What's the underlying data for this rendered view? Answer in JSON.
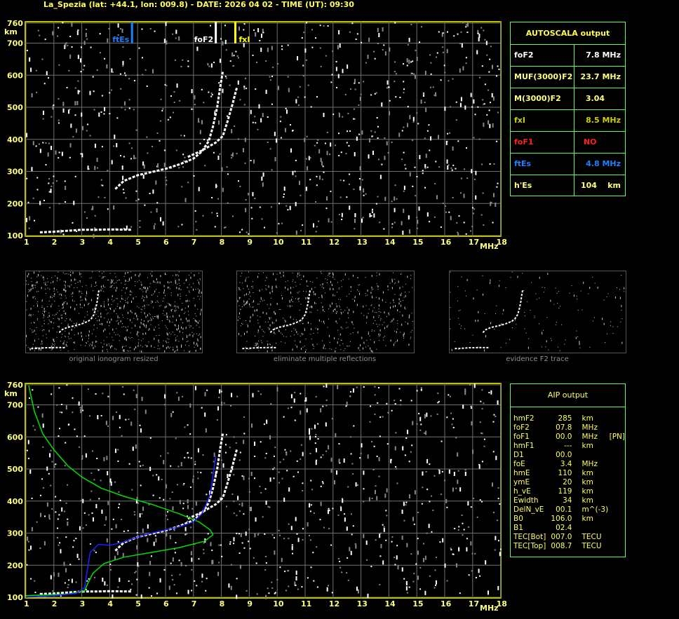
{
  "header": {
    "title": "La_Spezia (lat: +44.1, lon: 009.8) - DATE: 2026 04 02 - TIME (UT): 09:30"
  },
  "colors": {
    "axis": "#ffff00",
    "grid": "#808080",
    "es": "#1e7fff",
    "fxi": "#ffff00",
    "foF1": "#ff2020",
    "profile": "#00e000",
    "model": "#2020ff",
    "panel_border": "#60ff60"
  },
  "autoscala": {
    "title": "AUTOSCALA output",
    "rows": [
      {
        "label": "foF2",
        "value": "7.8 MHz",
        "color": "#ffffff"
      },
      {
        "label": "MUF(3000)F2",
        "value": "23.7 MHz",
        "color": "#ffff80"
      },
      {
        "label": "M(3000)F2",
        "value": "3.04      ",
        "color": "#ffff80"
      },
      {
        "label": "fxI",
        "value": "8.5 MHz",
        "color": "#d0d000"
      },
      {
        "label": "foF1",
        "value": "NO         ",
        "color": "#ff2020"
      },
      {
        "label": "ftEs",
        "value": "4.8 MHz",
        "color": "#2080ff"
      },
      {
        "label": "h'Es",
        "value": "104    km",
        "color": "#ffff80"
      }
    ]
  },
  "aip": {
    "title": "AIP output",
    "rows": [
      [
        "hmF2",
        "285",
        "km",
        ""
      ],
      [
        "foF2",
        "07.8",
        "MHz",
        ""
      ],
      [
        "foF1",
        "00.0",
        "MHz",
        "[PN]"
      ],
      [
        "hmF1",
        "---",
        "km",
        ""
      ],
      [
        "D1",
        "00.0",
        "",
        ""
      ],
      [
        "foE",
        "3.4",
        "MHz",
        ""
      ],
      [
        "hmE",
        "110",
        "km",
        ""
      ],
      [
        "ymE",
        "20",
        "km",
        ""
      ],
      [
        "h_vE",
        "119",
        "km",
        ""
      ],
      [
        "Ewidth",
        "34",
        "km",
        ""
      ],
      [
        "DelN_vE",
        "00.1",
        "m^(-3)",
        ""
      ],
      [
        "B0",
        "106.0",
        "km",
        ""
      ],
      [
        "B1",
        "02.4",
        "",
        ""
      ],
      [
        "TEC[Bot]",
        "007.0",
        "TECU",
        ""
      ],
      [
        "TEC[Top]",
        "008.7",
        "TECU",
        ""
      ]
    ]
  },
  "captions": [
    "original ionogram resized",
    "eliminate multiple reflections",
    "evidence F2 trace"
  ],
  "chart_data": [
    {
      "type": "scatter",
      "xlabel": "MHz",
      "ylabel": "km",
      "xlim": [
        1,
        18
      ],
      "ylim": [
        100,
        760
      ],
      "xticks": [
        1,
        2,
        3,
        4,
        5,
        6,
        7,
        8,
        9,
        10,
        11,
        12,
        13,
        14,
        15,
        16,
        17,
        18
      ],
      "yticks": [
        100,
        200,
        300,
        400,
        500,
        600,
        700,
        760
      ],
      "grid": true,
      "markers": [
        {
          "label": "ftEs",
          "x": 4.8,
          "color": "#1e7fff"
        },
        {
          "label": "foF2",
          "x": 7.8,
          "color": "#ffffff"
        },
        {
          "label": "fxI",
          "x": 8.5,
          "color": "#ffff00"
        }
      ],
      "traces": {
        "o": [
          [
            4.2,
            245
          ],
          [
            4.5,
            270
          ],
          [
            5,
            288
          ],
          [
            5.5,
            298
          ],
          [
            6,
            308
          ],
          [
            6.5,
            322
          ],
          [
            7,
            340
          ],
          [
            7.3,
            362
          ],
          [
            7.55,
            395
          ],
          [
            7.7,
            440
          ],
          [
            7.85,
            500
          ],
          [
            7.95,
            560
          ],
          [
            8.05,
            610
          ]
        ],
        "x": [
          [
            6.8,
            345
          ],
          [
            7.3,
            365
          ],
          [
            7.8,
            390
          ],
          [
            8.05,
            410
          ],
          [
            8.2,
            450
          ],
          [
            8.4,
            510
          ],
          [
            8.55,
            560
          ]
        ],
        "E": [
          [
            1.5,
            110
          ],
          [
            2,
            112
          ],
          [
            2.5,
            115
          ],
          [
            3,
            118
          ],
          [
            3.5,
            118
          ],
          [
            4,
            119
          ],
          [
            4.8,
            118
          ]
        ]
      }
    },
    {
      "type": "line",
      "xlabel": "MHz",
      "ylabel": "km",
      "xlim": [
        1,
        18
      ],
      "ylim": [
        100,
        760
      ],
      "xticks": [
        1,
        2,
        3,
        4,
        5,
        6,
        7,
        8,
        9,
        10,
        11,
        12,
        13,
        14,
        15,
        16,
        17,
        18
      ],
      "yticks": [
        100,
        200,
        300,
        400,
        500,
        600,
        700,
        760
      ],
      "grid": true,
      "series": [
        {
          "color": "#00e000",
          "points": [
            [
              1.1,
              760
            ],
            [
              1.3,
              680
            ],
            [
              1.6,
              610
            ],
            [
              2,
              560
            ],
            [
              2.5,
              510
            ],
            [
              3,
              475
            ],
            [
              3.7,
              440
            ],
            [
              4.5,
              415
            ],
            [
              5.5,
              390
            ],
            [
              6.5,
              360
            ],
            [
              7.2,
              335
            ],
            [
              7.6,
              310
            ],
            [
              7.7,
              295
            ],
            [
              7.4,
              275
            ],
            [
              6.5,
              255
            ],
            [
              5.5,
              240
            ],
            [
              4.5,
              225
            ],
            [
              3.8,
              205
            ],
            [
              3.4,
              175
            ],
            [
              3.2,
              140
            ],
            [
              3.1,
              120
            ],
            [
              2.5,
              110
            ],
            [
              1,
              105
            ]
          ]
        },
        {
          "color": "#2020ff",
          "points": [
            [
              1,
              100
            ],
            [
              2,
              105
            ],
            [
              2.8,
              112
            ],
            [
              3.1,
              130
            ],
            [
              3.3,
              240
            ],
            [
              3.6,
              265
            ],
            [
              4,
              262
            ],
            [
              4.5,
              272
            ],
            [
              5,
              288
            ],
            [
              5.5,
              300
            ],
            [
              6,
              310
            ],
            [
              6.5,
              320
            ],
            [
              7,
              335
            ],
            [
              7.3,
              360
            ],
            [
              7.6,
              420
            ],
            [
              7.8,
              540
            ]
          ]
        }
      ]
    }
  ]
}
